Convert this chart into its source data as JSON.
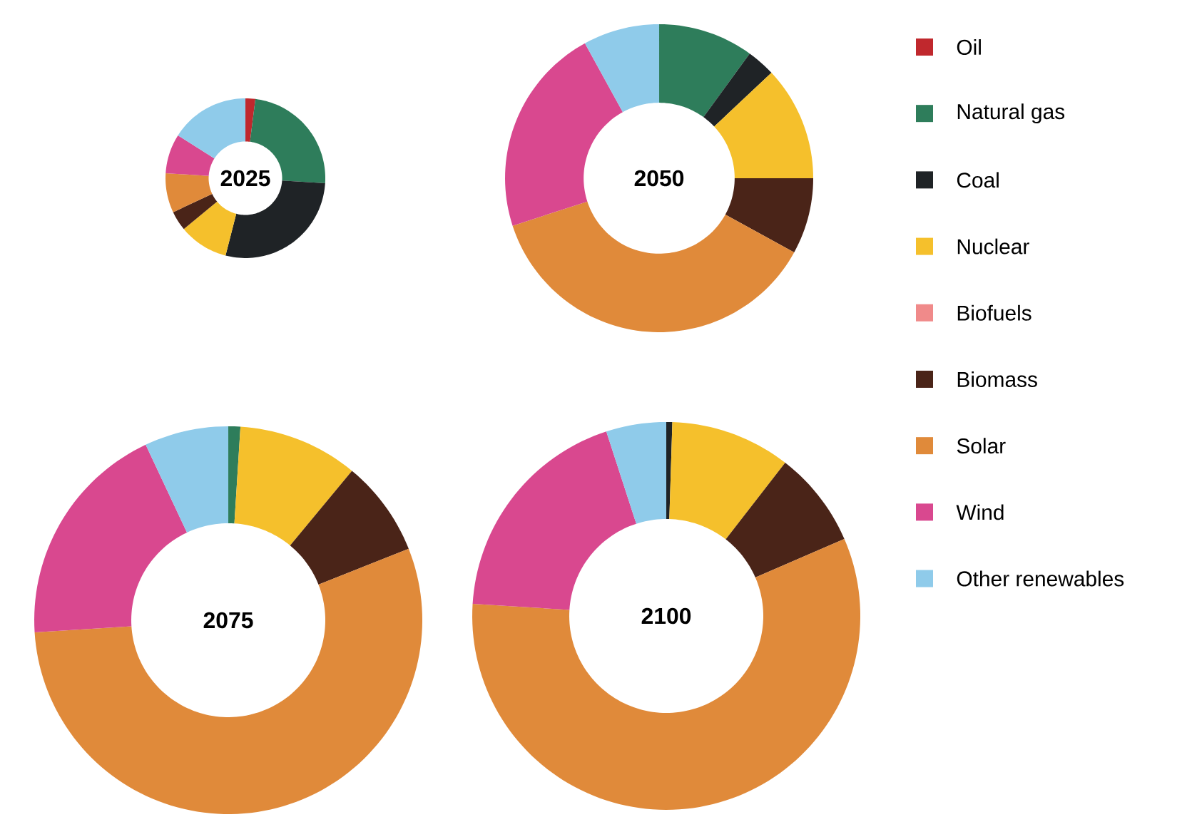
{
  "chart_data": [
    {
      "type": "donut",
      "title": "2025",
      "legend": "right",
      "categories": [
        "Oil",
        "Natural gas",
        "Coal",
        "Nuclear",
        "Biofuels",
        "Biomass",
        "Solar",
        "Wind",
        "Other renewables"
      ],
      "values": [
        2,
        24,
        28,
        10,
        0,
        4,
        8,
        8,
        16
      ],
      "colors": [
        "#c0282d",
        "#2e7d5b",
        "#1f2326",
        "#f5c02c",
        "#f08a8a",
        "#4a2418",
        "#e08a3a",
        "#d9488f",
        "#8fcbea"
      ]
    },
    {
      "type": "donut",
      "title": "2050",
      "categories": [
        null,
        null,
        null,
        null,
        null,
        null,
        null,
        null,
        null
      ],
      "values": [
        0,
        10,
        3,
        12,
        0,
        8,
        37,
        22,
        8
      ],
      "colors": [
        "#c0282d",
        "#2e7d5b",
        "#1f2326",
        "#f5c02c",
        "#f08a8a",
        "#4a2418",
        "#e08a3a",
        "#d9488f",
        "#8fcbea"
      ]
    },
    {
      "type": "donut",
      "title": "2075",
      "categories": [
        null,
        null,
        null,
        null,
        null,
        null,
        null,
        null,
        null
      ],
      "values": [
        0,
        1,
        0,
        10,
        0,
        8,
        55,
        19,
        7
      ],
      "colors": [
        "#c0282d",
        "#2e7d5b",
        "#1f2326",
        "#f5c02c",
        "#f08a8a",
        "#4a2418",
        "#e08a3a",
        "#d9488f",
        "#8fcbea"
      ]
    },
    {
      "type": "donut",
      "title": "2100",
      "categories": [
        null,
        null,
        null,
        null,
        null,
        null,
        null,
        null,
        null
      ],
      "values": [
        0,
        0,
        0.5,
        10,
        0,
        8,
        57.5,
        19,
        5
      ],
      "colors": [
        "#c0282d",
        "#2e7d5b",
        "#1f2326",
        "#f5c02c",
        "#f08a8a",
        "#4a2418",
        "#e08a3a",
        "#d9488f",
        "#8fcbea"
      ]
    }
  ]
}
